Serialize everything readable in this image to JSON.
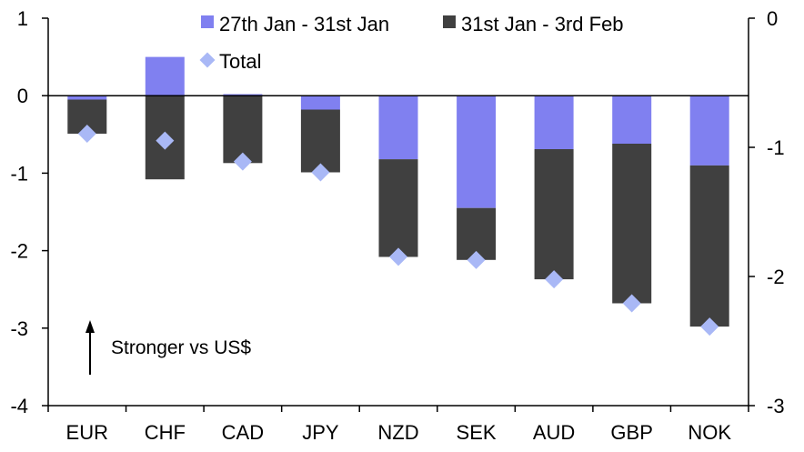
{
  "chart_data": {
    "type": "bar",
    "categories": [
      "EUR",
      "CHF",
      "CAD",
      "JPY",
      "NZD",
      "SEK",
      "AUD",
      "GBP",
      "NOK"
    ],
    "series": [
      {
        "name": "27th Jan - 31st Jan",
        "color": "#8080f0",
        "values": [
          -0.05,
          0.5,
          0.02,
          -0.18,
          -0.82,
          -1.45,
          -0.69,
          -0.62,
          -0.9
        ]
      },
      {
        "name": "31st Jan - 3rd Feb",
        "color": "#404040",
        "values": [
          -0.44,
          -1.08,
          -0.87,
          -0.81,
          -1.26,
          -0.67,
          -1.68,
          -2.06,
          -2.08
        ]
      }
    ],
    "total": {
      "name": "Total",
      "color": "#a9b8f6",
      "values": [
        -0.49,
        -0.58,
        -0.85,
        -0.99,
        -2.08,
        -2.12,
        -2.37,
        -2.68,
        -2.98
      ]
    },
    "left_axis": {
      "min": -4,
      "max": 1,
      "ticks": [
        1,
        0,
        -1,
        -2,
        -3,
        -4
      ]
    },
    "right_axis": {
      "min": -3,
      "max": 0,
      "ticks": [
        0,
        -1,
        -2,
        -3
      ]
    },
    "annotation": "Stronger vs US$",
    "legend_position": "top",
    "grid": false
  }
}
